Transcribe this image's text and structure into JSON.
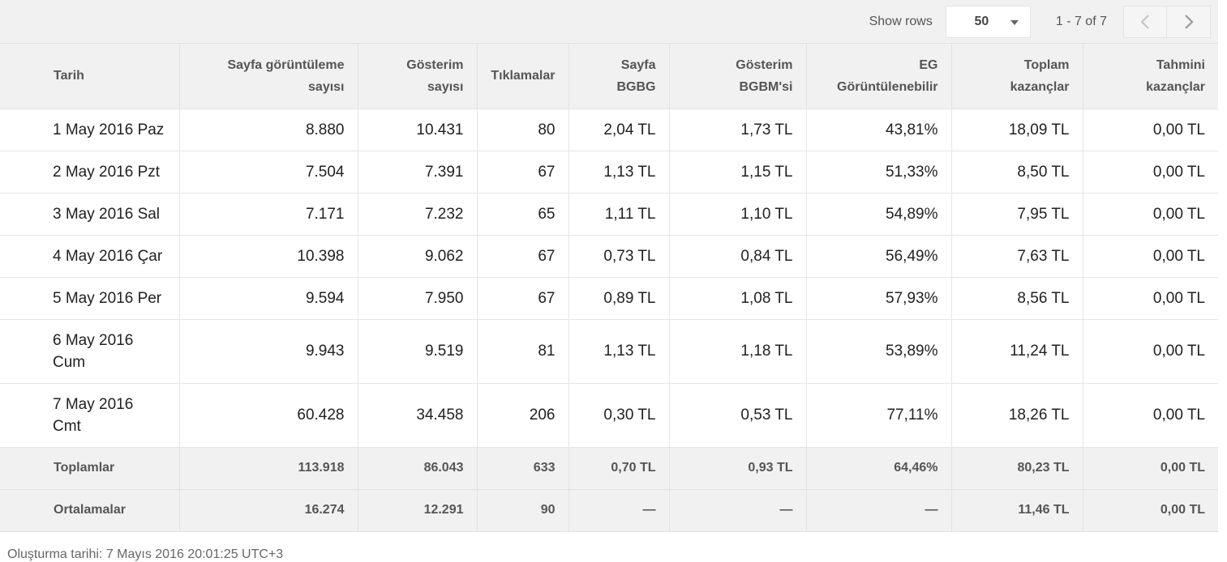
{
  "toolbar": {
    "show_rows_label": "Show rows",
    "rows_value": "50",
    "range_text": "1 - 7 of 7",
    "prev_icon": "chevron-left-icon",
    "next_icon": "chevron-right-icon"
  },
  "table": {
    "headers": [
      [
        "Tarih",
        ""
      ],
      [
        "Sayfa görüntüleme",
        "sayısı"
      ],
      [
        "Gösterim",
        "sayısı"
      ],
      [
        "Tıklamalar",
        ""
      ],
      [
        "Sayfa",
        "BGBG"
      ],
      [
        "Gösterim",
        "BGBM'si"
      ],
      [
        "EG",
        "Görüntülenebilir"
      ],
      [
        "Toplam",
        "kazançlar"
      ],
      [
        "Tahmini",
        "kazançlar"
      ]
    ],
    "rows": [
      [
        "1 May 2016 Paz",
        "8.880",
        "10.431",
        "80",
        "2,04 TL",
        "1,73 TL",
        "43,81%",
        "18,09 TL",
        "0,00 TL"
      ],
      [
        "2 May 2016 Pzt",
        "7.504",
        "7.391",
        "67",
        "1,13 TL",
        "1,15 TL",
        "51,33%",
        "8,50 TL",
        "0,00 TL"
      ],
      [
        "3 May 2016 Sal",
        "7.171",
        "7.232",
        "65",
        "1,11 TL",
        "1,10 TL",
        "54,89%",
        "7,95 TL",
        "0,00 TL"
      ],
      [
        "4 May 2016 Çar",
        "10.398",
        "9.062",
        "67",
        "0,73 TL",
        "0,84 TL",
        "56,49%",
        "7,63 TL",
        "0,00 TL"
      ],
      [
        "5 May 2016 Per",
        "9.594",
        "7.950",
        "67",
        "0,89 TL",
        "1,08 TL",
        "57,93%",
        "8,56 TL",
        "0,00 TL"
      ],
      [
        "6 May 2016 Cum",
        "9.943",
        "9.519",
        "81",
        "1,13 TL",
        "1,18 TL",
        "53,89%",
        "11,24 TL",
        "0,00 TL"
      ],
      [
        "7 May 2016 Cmt",
        "60.428",
        "34.458",
        "206",
        "0,30 TL",
        "0,53 TL",
        "77,11%",
        "18,26 TL",
        "0,00 TL"
      ]
    ],
    "totals": [
      "Toplamlar",
      "113.918",
      "86.043",
      "633",
      "0,70 TL",
      "0,93 TL",
      "64,46%",
      "80,23 TL",
      "0,00 TL"
    ],
    "averages": [
      "Ortalamalar",
      "16.274",
      "12.291",
      "90",
      "—",
      "—",
      "—",
      "11,46 TL",
      "0,00 TL"
    ]
  },
  "footer": {
    "created_text": "Oluşturma tarihi: 7 Mayıs 2016 20:01:25 UTC+3"
  }
}
